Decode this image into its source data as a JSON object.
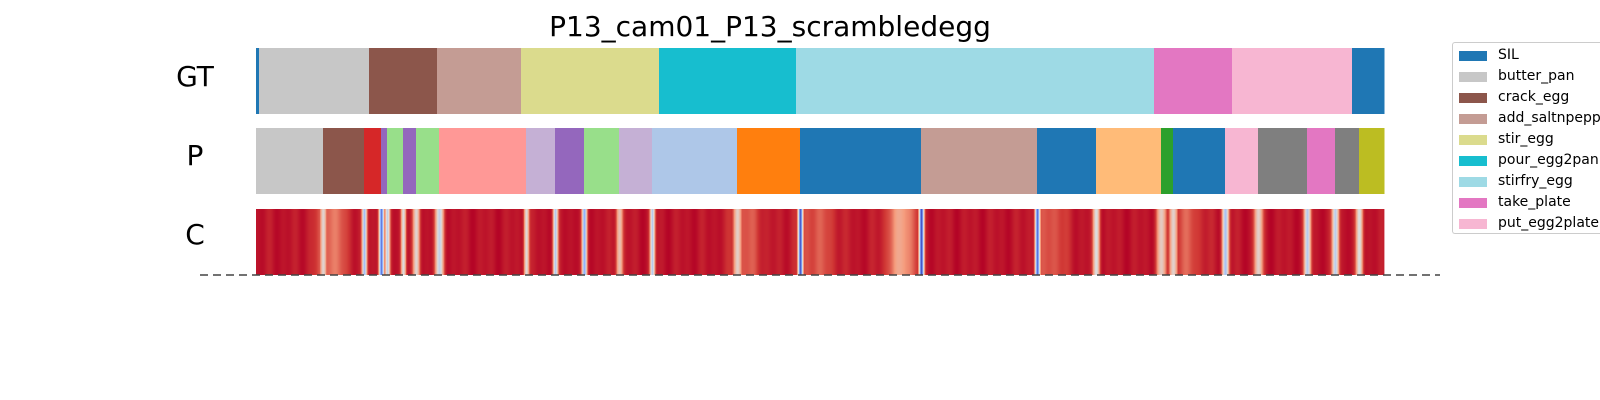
{
  "chart_data": {
    "type": "segmentation_timeline",
    "title": "P13_cam01_P13_scrambledegg",
    "frames": 1128,
    "rows": [
      {
        "label": "GT",
        "segments": [
          {
            "start": 0,
            "end": 3,
            "class": "SIL"
          },
          {
            "start": 3,
            "end": 113,
            "class": "butter_pan"
          },
          {
            "start": 113,
            "end": 181,
            "class": "crack_egg"
          },
          {
            "start": 181,
            "end": 265,
            "class": "add_saltnpepper"
          },
          {
            "start": 265,
            "end": 403,
            "class": "stir_egg"
          },
          {
            "start": 403,
            "end": 540,
            "class": "pour_egg2pan"
          },
          {
            "start": 540,
            "end": 898,
            "class": "stirfry_egg"
          },
          {
            "start": 898,
            "end": 976,
            "class": "take_plate"
          },
          {
            "start": 976,
            "end": 1096,
            "class": "put_egg2plate"
          },
          {
            "start": 1096,
            "end": 1128,
            "class": "SIL"
          }
        ]
      },
      {
        "label": "P",
        "segments": [
          {
            "start": 0,
            "end": 67,
            "class": "butter_pan"
          },
          {
            "start": 67,
            "end": 108,
            "class": "crack_egg"
          },
          {
            "start": 108,
            "end": 125,
            "class": "unlisted_red"
          },
          {
            "start": 125,
            "end": 131,
            "class": "unlisted_purple"
          },
          {
            "start": 131,
            "end": 147,
            "class": "unlisted_lightgreen"
          },
          {
            "start": 147,
            "end": 160,
            "class": "unlisted_purple"
          },
          {
            "start": 160,
            "end": 183,
            "class": "unlisted_lightgreen"
          },
          {
            "start": 183,
            "end": 270,
            "class": "unlisted_lightred"
          },
          {
            "start": 270,
            "end": 299,
            "class": "unlisted_lightpurple"
          },
          {
            "start": 299,
            "end": 328,
            "class": "unlisted_purple"
          },
          {
            "start": 328,
            "end": 363,
            "class": "unlisted_lightgreen"
          },
          {
            "start": 363,
            "end": 396,
            "class": "unlisted_lightpurple"
          },
          {
            "start": 396,
            "end": 481,
            "class": "unlisted_lightblue"
          },
          {
            "start": 481,
            "end": 544,
            "class": "unlisted_orange"
          },
          {
            "start": 544,
            "end": 665,
            "class": "SIL"
          },
          {
            "start": 665,
            "end": 781,
            "class": "add_saltnpepper"
          },
          {
            "start": 781,
            "end": 840,
            "class": "SIL"
          },
          {
            "start": 840,
            "end": 905,
            "class": "unlisted_lightorange"
          },
          {
            "start": 905,
            "end": 917,
            "class": "unlisted_green"
          },
          {
            "start": 917,
            "end": 969,
            "class": "SIL"
          },
          {
            "start": 969,
            "end": 1002,
            "class": "put_egg2plate"
          },
          {
            "start": 1002,
            "end": 1051,
            "class": "unlisted_gray"
          },
          {
            "start": 1051,
            "end": 1079,
            "class": "take_plate"
          },
          {
            "start": 1079,
            "end": 1103,
            "class": "unlisted_gray"
          },
          {
            "start": 1103,
            "end": 1128,
            "class": "unlisted_olive"
          }
        ]
      },
      {
        "label": "C",
        "colormap": "coolwarm",
        "base_value": 0.97,
        "dips": [
          {
            "at": 67,
            "width": 4,
            "value": 0.55
          },
          {
            "at": 75,
            "width": 20,
            "value": 0.8
          },
          {
            "at": 108,
            "width": 3,
            "value": 0.35
          },
          {
            "at": 125,
            "width": 3,
            "value": 0.1
          },
          {
            "at": 131,
            "width": 3,
            "value": 0.45
          },
          {
            "at": 147,
            "width": 3,
            "value": 0.5
          },
          {
            "at": 160,
            "width": 4,
            "value": 0.55
          },
          {
            "at": 183,
            "width": 5,
            "value": 0.45
          },
          {
            "at": 270,
            "width": 3,
            "value": 0.5
          },
          {
            "at": 299,
            "width": 3,
            "value": 0.4
          },
          {
            "at": 328,
            "width": 3,
            "value": 0.3
          },
          {
            "at": 363,
            "width": 4,
            "value": 0.6
          },
          {
            "at": 396,
            "width": 3,
            "value": 0.4
          },
          {
            "at": 481,
            "width": 5,
            "value": 0.55
          },
          {
            "at": 490,
            "width": 20,
            "value": 0.85
          },
          {
            "at": 544,
            "width": 3,
            "value": 0.05
          },
          {
            "at": 560,
            "width": 25,
            "value": 0.85
          },
          {
            "at": 645,
            "width": 18,
            "value": 0.72
          },
          {
            "at": 665,
            "width": 3,
            "value": 0.05
          },
          {
            "at": 781,
            "width": 3,
            "value": 0.1
          },
          {
            "at": 795,
            "width": 20,
            "value": 0.85
          },
          {
            "at": 840,
            "width": 4,
            "value": 0.5
          },
          {
            "at": 905,
            "width": 6,
            "value": 0.6
          },
          {
            "at": 917,
            "width": 5,
            "value": 0.55
          },
          {
            "at": 930,
            "width": 20,
            "value": 0.85
          },
          {
            "at": 969,
            "width": 4,
            "value": 0.35
          },
          {
            "at": 1002,
            "width": 5,
            "value": 0.55
          },
          {
            "at": 1051,
            "width": 4,
            "value": 0.4
          },
          {
            "at": 1079,
            "width": 4,
            "value": 0.4
          },
          {
            "at": 1103,
            "width": 4,
            "value": 0.5
          }
        ]
      }
    ],
    "classes": [
      {
        "name": "SIL",
        "color": "#1f77b4"
      },
      {
        "name": "butter_pan",
        "color": "#c7c7c7"
      },
      {
        "name": "crack_egg",
        "color": "#8c564b"
      },
      {
        "name": "add_saltnpepper",
        "color": "#c49c94"
      },
      {
        "name": "stir_egg",
        "color": "#dbdb8d"
      },
      {
        "name": "pour_egg2pan",
        "color": "#17becf"
      },
      {
        "name": "stirfry_egg",
        "color": "#9edae5"
      },
      {
        "name": "take_plate",
        "color": "#e377c2"
      },
      {
        "name": "put_egg2plate",
        "color": "#f7b6d2"
      },
      {
        "name": "unlisted_red",
        "color": "#d62728"
      },
      {
        "name": "unlisted_purple",
        "color": "#9467bd"
      },
      {
        "name": "unlisted_lightgreen",
        "color": "#98df8a"
      },
      {
        "name": "unlisted_lightred",
        "color": "#ff9896"
      },
      {
        "name": "unlisted_lightpurple",
        "color": "#c5b0d5"
      },
      {
        "name": "unlisted_lightblue",
        "color": "#aec7e8"
      },
      {
        "name": "unlisted_orange",
        "color": "#ff7f0e"
      },
      {
        "name": "unlisted_lightorange",
        "color": "#ffbb78"
      },
      {
        "name": "unlisted_green",
        "color": "#2ca02c"
      },
      {
        "name": "unlisted_gray",
        "color": "#7f7f7f"
      },
      {
        "name": "unlisted_olive",
        "color": "#bcbd22"
      }
    ],
    "legend": {
      "placement": "top-right",
      "entries": [
        {
          "label": "SIL",
          "color": "#1f77b4"
        },
        {
          "label": "butter_pan",
          "color": "#c7c7c7"
        },
        {
          "label": "crack_egg",
          "color": "#8c564b"
        },
        {
          "label": "add_saltnpepp",
          "color": "#c49c94"
        },
        {
          "label": "stir_egg",
          "color": "#dbdb8d"
        },
        {
          "label": "pour_egg2pan",
          "color": "#17becf"
        },
        {
          "label": "stirfry_egg",
          "color": "#9edae5"
        },
        {
          "label": "take_plate",
          "color": "#e377c2"
        },
        {
          "label": "put_egg2plate",
          "color": "#f7b6d2"
        }
      ]
    }
  }
}
